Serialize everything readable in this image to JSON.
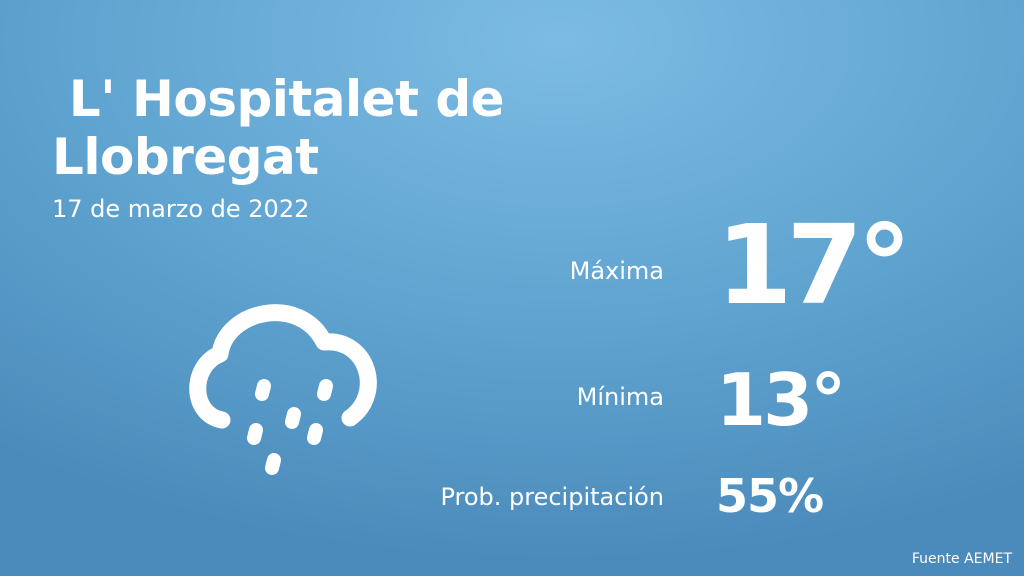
{
  "location": {
    "name": " L' Hospitalet de Llobregat",
    "date": "17 de marzo de 2022"
  },
  "forecast": {
    "icon": "rain-cloud-icon",
    "max_label": "Máxima",
    "max_value": "17°",
    "min_label": "Mínima",
    "min_value": "13°",
    "prob_label": "Prob. precipitación",
    "prob_value": "55%"
  },
  "footer": {
    "source": "Fuente AEMET"
  },
  "colors": {
    "background_light": "#7cbce4",
    "background_dark": "#4b8bbb",
    "text": "#ffffff"
  }
}
